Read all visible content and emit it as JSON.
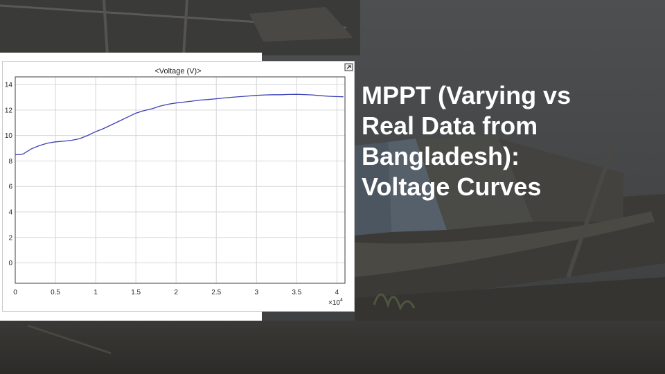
{
  "slide": {
    "title_lines": [
      "MPPT (Varying vs",
      "Real Data from",
      "Bangladesh):",
      "Voltage Curves"
    ]
  },
  "colors": {
    "line": "#3a3fb5",
    "title": "#ffffff",
    "grid": "#d6d6d6"
  },
  "figure": {
    "undock_icon": "undock-icon"
  },
  "chart_data": {
    "type": "line",
    "title": "<Voltage (V)>",
    "xlabel": "",
    "ylabel": "",
    "x_exponent_label": "×10",
    "x_exponent_power": "4",
    "xlim": [
      0,
      4.1
    ],
    "ylim": [
      -1.6,
      14.6
    ],
    "x_ticks": [
      0,
      0.5,
      1,
      1.5,
      2,
      2.5,
      3,
      3.5,
      4
    ],
    "x_tick_labels": [
      "0",
      "0.5",
      "1",
      "1.5",
      "2",
      "2.5",
      "3",
      "3.5",
      "4"
    ],
    "y_ticks": [
      0,
      2,
      4,
      6,
      8,
      10,
      12,
      14
    ],
    "y_tick_labels": [
      "0",
      "2",
      "4",
      "6",
      "8",
      "10",
      "12",
      "14"
    ],
    "grid": true,
    "series": [
      {
        "x": [
          0,
          0.05,
          0.1,
          0.15,
          0.2,
          0.3,
          0.4,
          0.5,
          0.6,
          0.7,
          0.8,
          0.9,
          1.0,
          1.1,
          1.2,
          1.3,
          1.4,
          1.5,
          1.6,
          1.7,
          1.8,
          1.9,
          2.0,
          2.1,
          2.2,
          2.3,
          2.4,
          2.5,
          2.6,
          2.7,
          2.8,
          2.9,
          3.0,
          3.1,
          3.2,
          3.3,
          3.4,
          3.5,
          3.6,
          3.7,
          3.8,
          3.9,
          4.0,
          4.08
        ],
        "y": [
          8.5,
          8.5,
          8.55,
          8.75,
          8.95,
          9.2,
          9.4,
          9.5,
          9.55,
          9.62,
          9.75,
          10.0,
          10.3,
          10.55,
          10.85,
          11.15,
          11.45,
          11.75,
          11.95,
          12.1,
          12.3,
          12.45,
          12.55,
          12.62,
          12.7,
          12.78,
          12.82,
          12.88,
          12.95,
          13.0,
          13.05,
          13.1,
          13.15,
          13.18,
          13.2,
          13.2,
          13.22,
          13.23,
          13.21,
          13.18,
          13.12,
          13.08,
          13.05,
          13.04
        ]
      }
    ]
  }
}
